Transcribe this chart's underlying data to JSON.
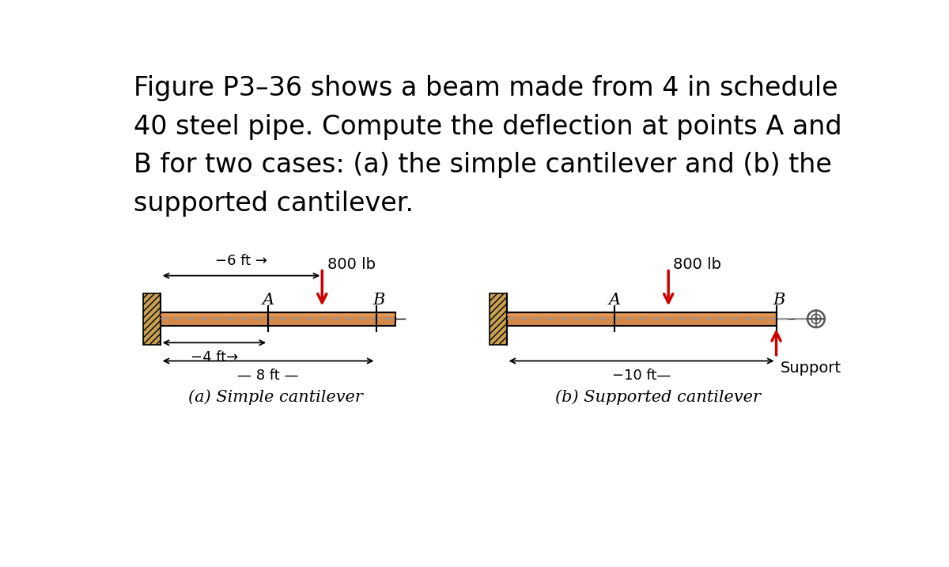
{
  "bg_color": "#ffffff",
  "wall_color": "#c8a050",
  "wall_hatch_color": "#000000",
  "beam_fill": "#d2894a",
  "beam_edge_color": "#000000",
  "beam_inner_line_color": "#cc8844",
  "dashed_color": "#999999",
  "force_color": "#cc0000",
  "support_color": "#cc0000",
  "dim_arrow_color": "#000000",
  "tick_color": "#000000",
  "label_fontsize": 15,
  "dim_fontsize": 13,
  "caption_fontsize": 15,
  "load_fontsize": 14,
  "title_lines": [
    "Figure P3–36 shows a beam made from 4 in schedule",
    "40 steel pipe. Compute the deflection at points A and",
    "B for two cases: (a) the simple cantilever and (b) the",
    "supported cantilever."
  ],
  "title_fontsize": 24,
  "caption_a": "(a) Simple cantilever",
  "caption_b": "(b) Supported cantilever",
  "support_label": "Support",
  "load_label": "800 lb"
}
